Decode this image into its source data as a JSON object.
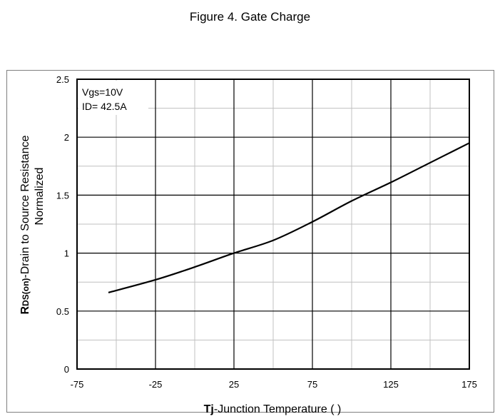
{
  "figure_title": "Figure 4.  Gate Charge",
  "chart_data": {
    "type": "line",
    "title": "Figure 4.  Gate Charge",
    "xlabel_prefix": "Tj",
    "xlabel_rest": "-Junction  Temperature (   )",
    "ylabel_prefix": "R",
    "ylabel_subscript": "DS(on)",
    "ylabel_rest": "-Drain to Source Resistance",
    "ylabel_line2": "Normalized",
    "annotation_lines": [
      "Vgs=10V",
      "ID= 42.5A"
    ],
    "xlim": [
      -75,
      175
    ],
    "ylim": [
      0,
      2.5
    ],
    "x_ticks": [
      -75,
      -25,
      25,
      75,
      125,
      175
    ],
    "x_tick_labels": [
      "-75",
      "-25",
      "25",
      "75",
      "125",
      "175"
    ],
    "y_ticks": [
      0,
      0.5,
      1,
      1.5,
      2,
      2.5
    ],
    "y_tick_labels": [
      "0",
      "0.5",
      "1",
      "1.5",
      "2",
      "2.5"
    ],
    "x_minor_gridlines": [
      -50,
      0,
      50,
      100,
      150
    ],
    "y_minor_gridlines": [
      0.25,
      0.75,
      1.25,
      1.75,
      2.25
    ],
    "grid": true,
    "series": [
      {
        "x": [
          -55,
          -25,
          0,
          25,
          50,
          75,
          100,
          125,
          150,
          175
        ],
        "y": [
          0.66,
          0.77,
          0.88,
          1.0,
          1.11,
          1.27,
          1.45,
          1.61,
          1.78,
          1.95
        ],
        "color": "#000000"
      }
    ]
  }
}
